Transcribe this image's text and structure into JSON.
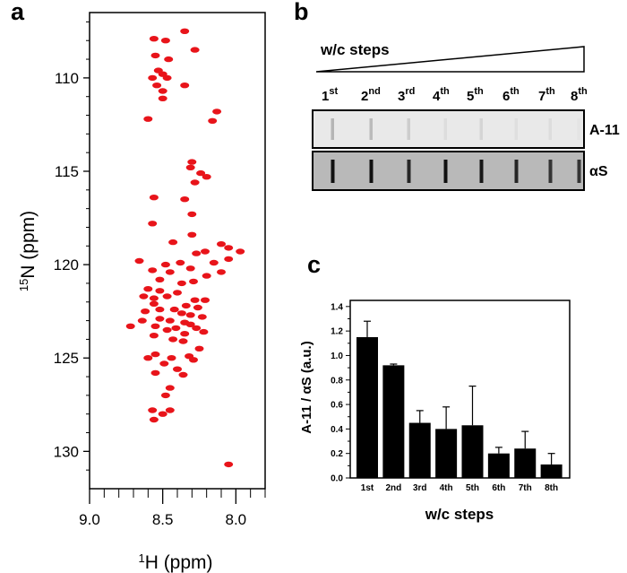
{
  "panels": {
    "a": "a",
    "b": "b",
    "c": "c"
  },
  "chart_data": [
    {
      "panel": "a",
      "type": "scatter",
      "xlabel_sup": "1",
      "xlabel_main": "H (ppm)",
      "ylabel_sup": "15",
      "ylabel_main": "N (ppm)",
      "x_reversed": true,
      "xlim": [
        9.0,
        7.8
      ],
      "ylim": [
        132,
        106.5
      ],
      "xticks": [
        "9.0",
        "8.5",
        "8.0"
      ],
      "xtick_values": [
        9.0,
        8.5,
        8.0
      ],
      "yticks": [
        "110",
        "115",
        "120",
        "125",
        "130"
      ],
      "ytick_values": [
        110,
        115,
        120,
        125,
        130
      ],
      "color": "#e8141a",
      "points": [
        [
          8.35,
          107.5
        ],
        [
          8.56,
          107.9
        ],
        [
          8.48,
          108.0
        ],
        [
          8.28,
          108.5
        ],
        [
          8.55,
          108.8
        ],
        [
          8.46,
          109.0
        ],
        [
          8.53,
          109.6
        ],
        [
          8.5,
          109.8
        ],
        [
          8.47,
          110.0
        ],
        [
          8.57,
          110.0
        ],
        [
          8.54,
          110.4
        ],
        [
          8.35,
          110.4
        ],
        [
          8.5,
          110.7
        ],
        [
          8.5,
          111.1
        ],
        [
          8.13,
          111.8
        ],
        [
          8.6,
          112.2
        ],
        [
          8.16,
          112.3
        ],
        [
          8.3,
          114.5
        ],
        [
          8.31,
          114.8
        ],
        [
          8.24,
          115.1
        ],
        [
          8.2,
          115.3
        ],
        [
          8.28,
          115.6
        ],
        [
          8.56,
          116.4
        ],
        [
          8.35,
          116.5
        ],
        [
          8.3,
          117.3
        ],
        [
          8.57,
          117.8
        ],
        [
          8.3,
          118.4
        ],
        [
          8.1,
          118.9
        ],
        [
          8.43,
          118.8
        ],
        [
          8.27,
          119.4
        ],
        [
          8.05,
          119.1
        ],
        [
          7.97,
          119.3
        ],
        [
          8.05,
          119.7
        ],
        [
          8.21,
          119.3
        ],
        [
          8.66,
          119.8
        ],
        [
          8.15,
          119.9
        ],
        [
          8.38,
          119.9
        ],
        [
          8.48,
          120.0
        ],
        [
          8.31,
          120.2
        ],
        [
          8.57,
          120.3
        ],
        [
          8.45,
          120.4
        ],
        [
          8.1,
          120.4
        ],
        [
          8.2,
          120.6
        ],
        [
          8.52,
          120.8
        ],
        [
          8.29,
          120.9
        ],
        [
          8.37,
          121.0
        ],
        [
          8.6,
          121.3
        ],
        [
          8.52,
          121.4
        ],
        [
          8.4,
          121.5
        ],
        [
          8.47,
          121.7
        ],
        [
          8.63,
          121.7
        ],
        [
          8.56,
          121.8
        ],
        [
          8.28,
          121.9
        ],
        [
          8.21,
          121.9
        ],
        [
          8.56,
          122.1
        ],
        [
          8.34,
          122.2
        ],
        [
          8.26,
          122.3
        ],
        [
          8.52,
          122.4
        ],
        [
          8.42,
          122.4
        ],
        [
          8.62,
          122.5
        ],
        [
          8.37,
          122.6
        ],
        [
          8.31,
          122.7
        ],
        [
          8.23,
          122.8
        ],
        [
          8.52,
          122.9
        ],
        [
          8.45,
          123.0
        ],
        [
          8.64,
          123.0
        ],
        [
          8.35,
          123.1
        ],
        [
          8.31,
          123.2
        ],
        [
          8.55,
          123.3
        ],
        [
          8.72,
          123.3
        ],
        [
          8.41,
          123.4
        ],
        [
          8.27,
          123.4
        ],
        [
          8.47,
          123.5
        ],
        [
          8.22,
          123.6
        ],
        [
          8.35,
          123.7
        ],
        [
          8.56,
          123.8
        ],
        [
          8.43,
          124.0
        ],
        [
          8.36,
          124.1
        ],
        [
          8.25,
          124.5
        ],
        [
          8.55,
          124.8
        ],
        [
          8.32,
          124.9
        ],
        [
          8.44,
          125.0
        ],
        [
          8.29,
          125.1
        ],
        [
          8.6,
          125.0
        ],
        [
          8.49,
          125.3
        ],
        [
          8.4,
          125.6
        ],
        [
          8.55,
          125.8
        ],
        [
          8.36,
          125.9
        ],
        [
          8.45,
          126.6
        ],
        [
          8.48,
          127.0
        ],
        [
          8.57,
          127.8
        ],
        [
          8.45,
          127.8
        ],
        [
          8.5,
          128.0
        ],
        [
          8.56,
          128.3
        ],
        [
          8.05,
          130.7
        ]
      ]
    },
    {
      "panel": "b",
      "type": "other",
      "gradient_label": "w/c steps",
      "lanes": [
        {
          "num": "1",
          "sup": "st"
        },
        {
          "num": "2",
          "sup": "nd"
        },
        {
          "num": "3",
          "sup": "rd"
        },
        {
          "num": "4",
          "sup": "th"
        },
        {
          "num": "5",
          "sup": "th"
        },
        {
          "num": "6",
          "sup": "th"
        },
        {
          "num": "7",
          "sup": "th"
        },
        {
          "num": "8",
          "sup": "th"
        }
      ],
      "rows": [
        "A-11",
        "αS"
      ],
      "a11_intensity": [
        0.45,
        0.4,
        0.25,
        0.12,
        0.18,
        0.1,
        0.12,
        0.06
      ],
      "as_intensity": [
        0.95,
        0.95,
        0.8,
        0.95,
        0.9,
        0.8,
        0.7,
        0.7
      ]
    },
    {
      "panel": "c",
      "type": "bar",
      "categories": [
        "1st",
        "2nd",
        "3rd",
        "4th",
        "5th",
        "6th",
        "7th",
        "8th"
      ],
      "values": [
        1.15,
        0.92,
        0.45,
        0.4,
        0.43,
        0.2,
        0.24,
        0.11
      ],
      "errors": [
        0.13,
        0.01,
        0.1,
        0.18,
        0.32,
        0.05,
        0.14,
        0.09
      ],
      "xlabel": "w/c steps",
      "ylabel": "A-11 / αS (a.u.)",
      "ylim": [
        0,
        1.45
      ],
      "yticks": [
        "0.0",
        "0.2",
        "0.4",
        "0.6",
        "0.8",
        "1.0",
        "1.2",
        "1.4"
      ],
      "ytick_values": [
        0.0,
        0.2,
        0.4,
        0.6,
        0.8,
        1.0,
        1.2,
        1.4
      ],
      "color": "#000000"
    }
  ]
}
